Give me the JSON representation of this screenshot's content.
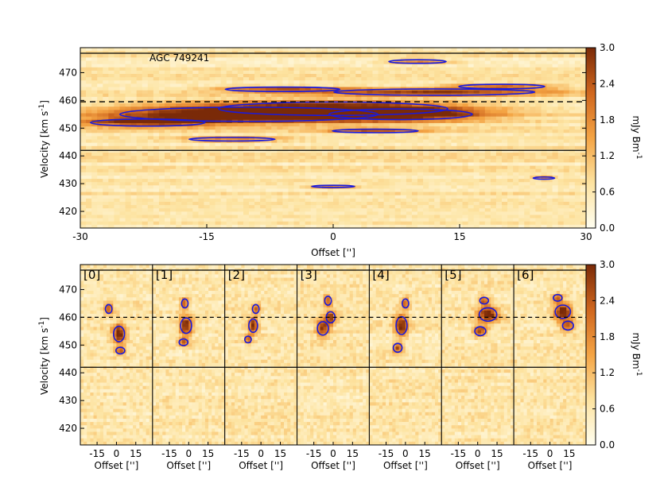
{
  "chart_data": [
    {
      "type": "heatmap",
      "annotation": "AGC 749241",
      "xlabel": "Offset ['']",
      "ylabel": "Velocity [km s$^{-1}$]",
      "xlim": [
        -30,
        30
      ],
      "ylim": [
        414,
        479
      ],
      "xticks": [
        -30,
        -15,
        0,
        15,
        30
      ],
      "yticks": [
        420,
        430,
        440,
        450,
        460,
        470
      ],
      "hlines": [
        477,
        442
      ],
      "dashed_line": 459.5,
      "contour_color": "#1a1adc",
      "blobs": [
        {
          "x": -10,
          "y": 455,
          "rx": 18,
          "ry": 3.2,
          "v": 2.7
        },
        {
          "x": 0,
          "y": 457,
          "rx": 16,
          "ry": 3,
          "v": 2.2
        },
        {
          "x": 8,
          "y": 455,
          "rx": 10,
          "ry": 2.4,
          "v": 1.9
        },
        {
          "x": -22,
          "y": 452,
          "rx": 8,
          "ry": 1.6,
          "v": 2.0
        },
        {
          "x": 12,
          "y": 463,
          "rx": 14,
          "ry": 1.4,
          "v": 2.0
        },
        {
          "x": -6,
          "y": 464,
          "rx": 8,
          "ry": 1.0,
          "v": 1.8
        },
        {
          "x": 10,
          "y": 474,
          "rx": 4,
          "ry": 0.8,
          "v": 1.7
        },
        {
          "x": -12,
          "y": 446,
          "rx": 6,
          "ry": 0.8,
          "v": 1.7
        },
        {
          "x": 5,
          "y": 449,
          "rx": 6,
          "ry": 0.8,
          "v": 1.6
        },
        {
          "x": 20,
          "y": 465,
          "rx": 6,
          "ry": 1.0,
          "v": 1.8
        },
        {
          "x": 0,
          "y": 429,
          "rx": 3,
          "ry": 0.5,
          "v": 1.6
        },
        {
          "x": 25,
          "y": 432,
          "rx": 1.5,
          "ry": 0.5,
          "v": 1.6
        }
      ],
      "colorbar": {
        "label": "mJy Bm$^{-1}$",
        "vmin": 0.0,
        "vmax": 3.0,
        "ticks": [
          "0.0",
          "0.6",
          "1.2",
          "1.8",
          "2.4",
          "3.0"
        ]
      }
    },
    {
      "type": "heatmap",
      "panels": [
        "[0]",
        "[1]",
        "[2]",
        "[3]",
        "[4]",
        "[5]",
        "[6]"
      ],
      "xlabel": "Offset ['']",
      "ylabel": "Velocity [km s$^{-1}$]",
      "xlim": [
        -28,
        28
      ],
      "ylim": [
        414,
        479
      ],
      "xticks": [
        -15,
        0,
        15
      ],
      "yticks": [
        420,
        430,
        440,
        450,
        460,
        470
      ],
      "hlines": [
        477,
        442
      ],
      "dashed_line": 460,
      "contour_color": "#1a1adc",
      "panel_blobs": [
        [
          {
            "x": 2,
            "y": 454,
            "rx": 5,
            "ry": 3.5,
            "v": 2.5
          },
          {
            "x": -6,
            "y": 463,
            "rx": 3,
            "ry": 2,
            "v": 1.8
          },
          {
            "x": 3,
            "y": 448,
            "rx": 4,
            "ry": 1.5,
            "v": 1.8
          }
        ],
        [
          {
            "x": -2,
            "y": 457,
            "rx": 5,
            "ry": 3.5,
            "v": 2.5
          },
          {
            "x": -3,
            "y": 465,
            "rx": 3,
            "ry": 2,
            "v": 1.8
          },
          {
            "x": -4,
            "y": 451,
            "rx": 4,
            "ry": 1.5,
            "v": 1.8
          }
        ],
        [
          {
            "x": -6,
            "y": 457,
            "rx": 4,
            "ry": 3,
            "v": 2.2
          },
          {
            "x": -4,
            "y": 463,
            "rx": 3,
            "ry": 2,
            "v": 1.7
          },
          {
            "x": -10,
            "y": 452,
            "rx": 3,
            "ry": 1.5,
            "v": 1.7
          }
        ],
        [
          {
            "x": -8,
            "y": 456,
            "rx": 5,
            "ry": 3,
            "v": 2.3
          },
          {
            "x": -2,
            "y": 460,
            "rx": 4,
            "ry": 2.5,
            "v": 2.1
          },
          {
            "x": -4,
            "y": 466,
            "rx": 3,
            "ry": 2,
            "v": 1.7
          }
        ],
        [
          {
            "x": -3,
            "y": 457,
            "rx": 5,
            "ry": 4,
            "v": 2.4
          },
          {
            "x": -6,
            "y": 449,
            "rx": 4,
            "ry": 2,
            "v": 1.9
          },
          {
            "x": 0,
            "y": 465,
            "rx": 3,
            "ry": 2,
            "v": 1.8
          }
        ],
        [
          {
            "x": 8,
            "y": 461,
            "rx": 8,
            "ry": 3,
            "v": 2.6
          },
          {
            "x": 2,
            "y": 455,
            "rx": 5,
            "ry": 2,
            "v": 2.0
          },
          {
            "x": 5,
            "y": 466,
            "rx": 4,
            "ry": 1.5,
            "v": 1.8
          }
        ],
        [
          {
            "x": 10,
            "y": 462,
            "rx": 7,
            "ry": 3,
            "v": 2.7
          },
          {
            "x": 14,
            "y": 457,
            "rx": 5,
            "ry": 2,
            "v": 2.0
          },
          {
            "x": 6,
            "y": 467,
            "rx": 4,
            "ry": 1.5,
            "v": 1.8
          }
        ]
      ],
      "colorbar": {
        "label": "mJy Bm$^{-1}$",
        "vmin": 0.0,
        "vmax": 3.0,
        "ticks": [
          "0.0",
          "0.6",
          "1.2",
          "1.8",
          "2.4",
          "3.0"
        ]
      }
    }
  ]
}
